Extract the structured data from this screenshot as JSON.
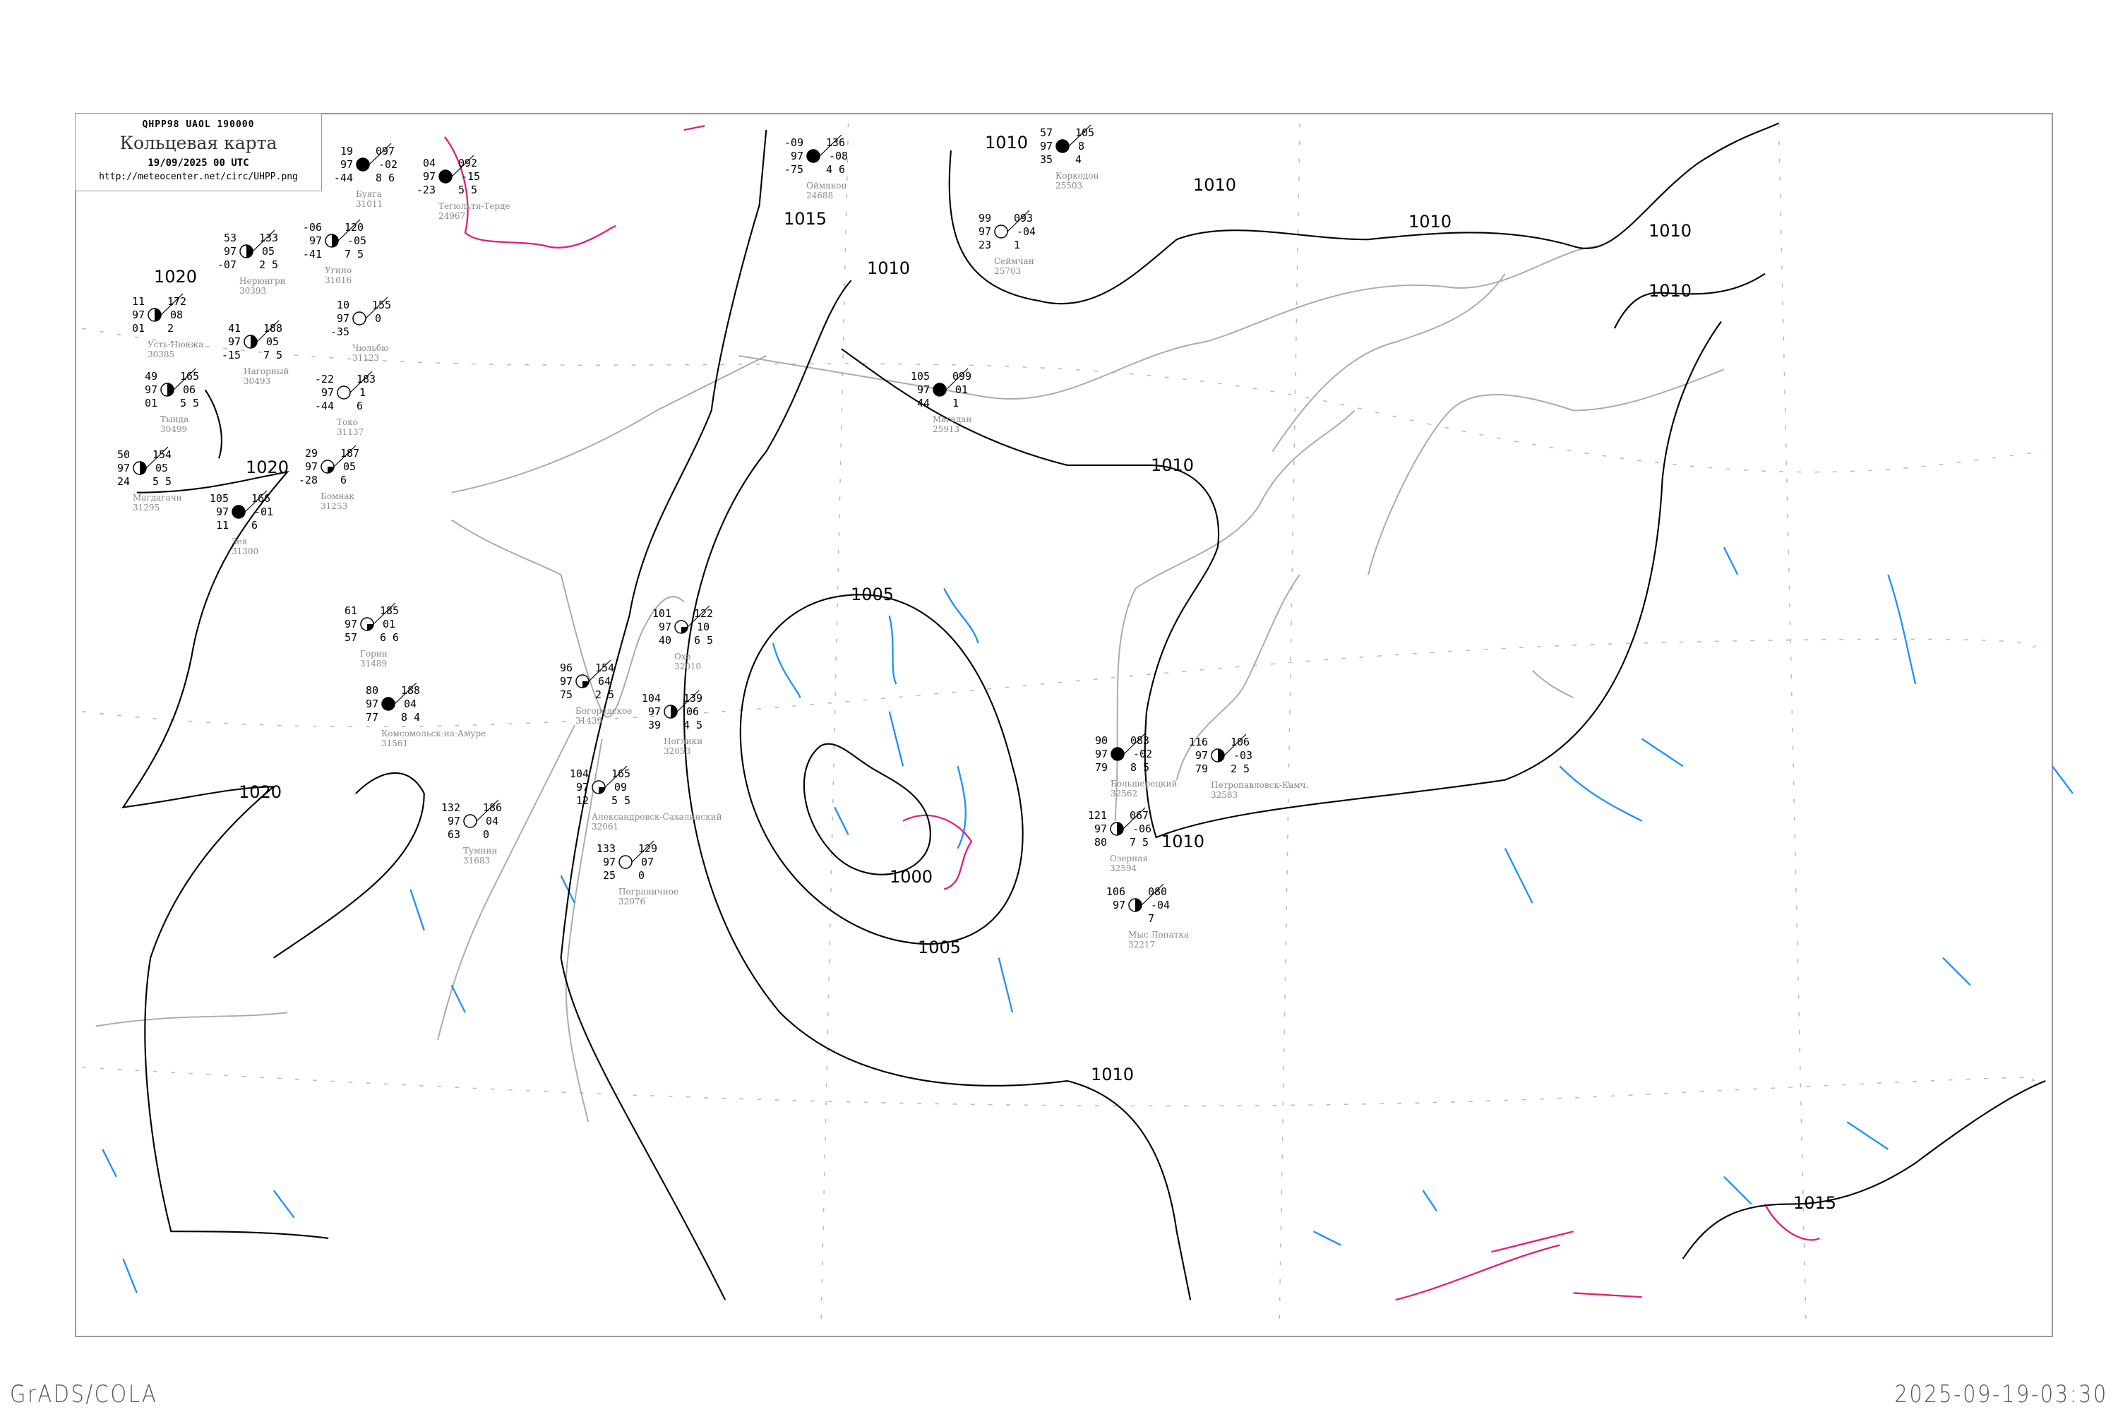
{
  "header": {
    "code_line": "QHPP98   UAOL   190000",
    "title": "Кольцевая карта",
    "datetime": "19/09/2025 00 UTC",
    "url": "http://meteocenter.net/circ/UHPP.png"
  },
  "footer": {
    "left": "GrADS/COLA",
    "right": "2025-09-19-03:30"
  },
  "colors": {
    "isobar": "#000000",
    "coastline": "#aaaaaa",
    "precipitation_zone": "#1e90ff",
    "isotherm_zero": "#e0207a",
    "grid": "#bbbbbb"
  },
  "isobar_labels": [
    "1000",
    "1005",
    "1005",
    "1010",
    "1010",
    "1010",
    "1010",
    "1010",
    "1010",
    "1010",
    "1010",
    "1010",
    "1015",
    "1015",
    "1020",
    "1020",
    "1020"
  ],
  "stations": [
    {
      "name": "Усть-Нюкжа",
      "id": "30385",
      "t": "11",
      "v": "97",
      "td": "01",
      "p": "172",
      "tend": "08",
      "extra": "2",
      "cover": "half"
    },
    {
      "name": "Нерюнгри",
      "id": "30393",
      "t": "53",
      "v": "97",
      "td": "-07",
      "p": "133",
      "tend": "05",
      "extra": "2 5",
      "cover": "half"
    },
    {
      "name": "Нагорный",
      "id": "30493",
      "t": "41",
      "v": "97",
      "td": "-15",
      "p": "188",
      "tend": "05",
      "extra": "7 5",
      "cover": "half"
    },
    {
      "name": "Тында",
      "id": "30499",
      "t": "49",
      "v": "97",
      "td": "01",
      "p": "165",
      "tend": "06",
      "extra": "5 5",
      "cover": "half"
    },
    {
      "name": "Буяга",
      "id": "31011",
      "t": "19",
      "v": "97",
      "td": "-44",
      "p": "097",
      "tend": "-02",
      "extra": "8 6",
      "cover": "full"
    },
    {
      "name": "Тегюльтя-Терде",
      "id": "24967",
      "t": "04",
      "v": "97",
      "td": "-23",
      "p": "092",
      "tend": "-15",
      "extra": "5 5",
      "cover": "full"
    },
    {
      "name": "Угино",
      "id": "31016",
      "t": "-06",
      "v": "97",
      "td": "-41",
      "p": "120",
      "tend": "-05",
      "extra": "7 5",
      "cover": "half"
    },
    {
      "name": "Чюльбю",
      "id": "31123",
      "t": "10",
      "v": "97",
      "td": "-35",
      "p": "155",
      "tend": "0",
      "extra": "",
      "cover": "empty"
    },
    {
      "name": "Токо",
      "id": "31137",
      "t": "-22",
      "v": "97",
      "td": "-44",
      "p": "183",
      "tend": "1",
      "extra": "6",
      "cover": "empty"
    },
    {
      "name": "Магдагачи",
      "id": "31295",
      "t": "50",
      "v": "97",
      "td": "24",
      "p": "154",
      "tend": "05",
      "extra": "5 5",
      "cover": "half"
    },
    {
      "name": "Зея",
      "id": "31300",
      "t": "105",
      "v": "97",
      "td": "11",
      "p": "166",
      "tend": "-01",
      "extra": "6",
      "cover": "full"
    },
    {
      "name": "Бомнак",
      "id": "31253",
      "t": "29",
      "v": "97",
      "td": "-28",
      "p": "187",
      "tend": "05",
      "extra": "6",
      "cover": "quarter"
    },
    {
      "name": "Оймякон",
      "id": "24688",
      "t": "-09",
      "v": "97",
      "td": "-75",
      "p": "136",
      "tend": "-08",
      "extra": "4 6",
      "cover": "full"
    },
    {
      "name": "Коркодон",
      "id": "25503",
      "t": "57",
      "v": "97",
      "td": "35",
      "p": "105",
      "tend": "8",
      "extra": "4",
      "cover": "full"
    },
    {
      "name": "Сеймчан",
      "id": "25703",
      "t": "99",
      "v": "97",
      "td": "23",
      "p": "093",
      "tend": "-04",
      "extra": "1",
      "cover": "empty"
    },
    {
      "name": "Магадан",
      "id": "25913",
      "t": "105",
      "v": "97",
      "td": "44",
      "p": "099",
      "tend": "01",
      "extra": "1",
      "cover": "full"
    },
    {
      "name": "Комсомольск-на-Амуре",
      "id": "31561",
      "t": "80",
      "v": "97",
      "td": "77",
      "p": "188",
      "tend": "04",
      "extra": "8 4",
      "cover": "full"
    },
    {
      "name": "Горин",
      "id": "31489",
      "t": "61",
      "v": "97",
      "td": "57",
      "p": "185",
      "tend": "01",
      "extra": "6 6",
      "cover": "quarter"
    },
    {
      "name": "Богородское",
      "id": "31439",
      "t": "96",
      "v": "97",
      "td": "75",
      "p": "154",
      "tend": "64",
      "extra": "2 5",
      "cover": "quarter"
    },
    {
      "name": "Оха",
      "id": "32010",
      "t": "101",
      "v": "97",
      "td": "40",
      "p": "122",
      "tend": "10",
      "extra": "6 5",
      "cover": "quarter"
    },
    {
      "name": "Ноглики",
      "id": "32053",
      "t": "104",
      "v": "97",
      "td": "39",
      "p": "139",
      "tend": "06",
      "extra": "4 5",
      "cover": "half"
    },
    {
      "name": "Александровск-Сахалинский",
      "id": "32061",
      "t": "104",
      "v": "97",
      "td": "12",
      "p": "165",
      "tend": "09",
      "extra": "5 5",
      "cover": "quarter"
    },
    {
      "name": "Пограничное",
      "id": "32076",
      "t": "133",
      "v": "97",
      "td": "25",
      "p": "129",
      "tend": "07",
      "extra": "0",
      "cover": "empty"
    },
    {
      "name": "Тумнин",
      "id": "31683",
      "t": "132",
      "v": "97",
      "td": "63",
      "p": "186",
      "tend": "04",
      "extra": "0",
      "cover": "empty"
    },
    {
      "name": "Большерецкий",
      "id": "32562",
      "t": "90",
      "v": "97",
      "td": "79",
      "p": "083",
      "tend": "-02",
      "extra": "8 5",
      "cover": "full"
    },
    {
      "name": "Петропавловск-Камч.",
      "id": "32583",
      "t": "116",
      "v": "97",
      "td": "79",
      "p": "106",
      "tend": "-03",
      "extra": "2 5",
      "cover": "half"
    },
    {
      "name": "Озерная",
      "id": "32594",
      "t": "121",
      "v": "97",
      "td": "80",
      "p": "067",
      "tend": "-06",
      "extra": "7 5",
      "cover": "half"
    },
    {
      "name": "Мыс Лопатка",
      "id": "32217",
      "t": "106",
      "v": "97",
      "td": "",
      "p": "080",
      "tend": "-04",
      "extra": "7",
      "cover": "half"
    }
  ]
}
